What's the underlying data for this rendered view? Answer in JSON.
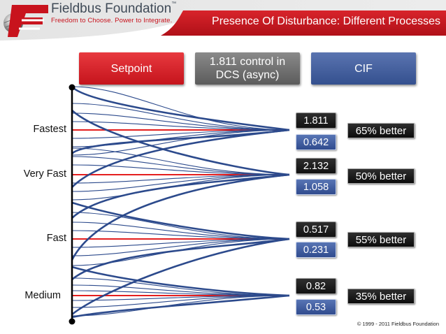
{
  "header": {
    "brand_name": "Fieldbus Foundation",
    "brand_mark": "™",
    "tagline": "Freedom to Choose. Power to Integrate.",
    "slide_title": "Presence Of Disturbance: Different Processes",
    "logo_icon": "fieldbus-globe-f-logo",
    "colors": {
      "brand_red": "#c8131d",
      "title_bar": "#c8131d"
    }
  },
  "buttons": {
    "setpoint": "Setpoint",
    "dcs_line1": "1.811  control in",
    "dcs_line2": "DCS (async)",
    "cif": "CIF"
  },
  "rows": [
    {
      "label": "Fastest",
      "dcs": "1.811",
      "cif": "0.642",
      "improvement": "65% better"
    },
    {
      "label": "Very Fast",
      "dcs": "2.132",
      "cif": "1.058",
      "improvement": "50% better"
    },
    {
      "label": "Fast",
      "dcs": "0.517",
      "cif": "0.231",
      "improvement": "55% better"
    },
    {
      "label": "Medium",
      "dcs": "0.82",
      "cif": "0.53",
      "improvement": "35% better"
    }
  ],
  "diagram": {
    "setpoint_color": "#e41e1e",
    "trace_color": "#2c4a8c",
    "axis_color": "#000000"
  },
  "footer": {
    "copyright": "© 1999 - 2011 Fieldbus Foundation"
  }
}
